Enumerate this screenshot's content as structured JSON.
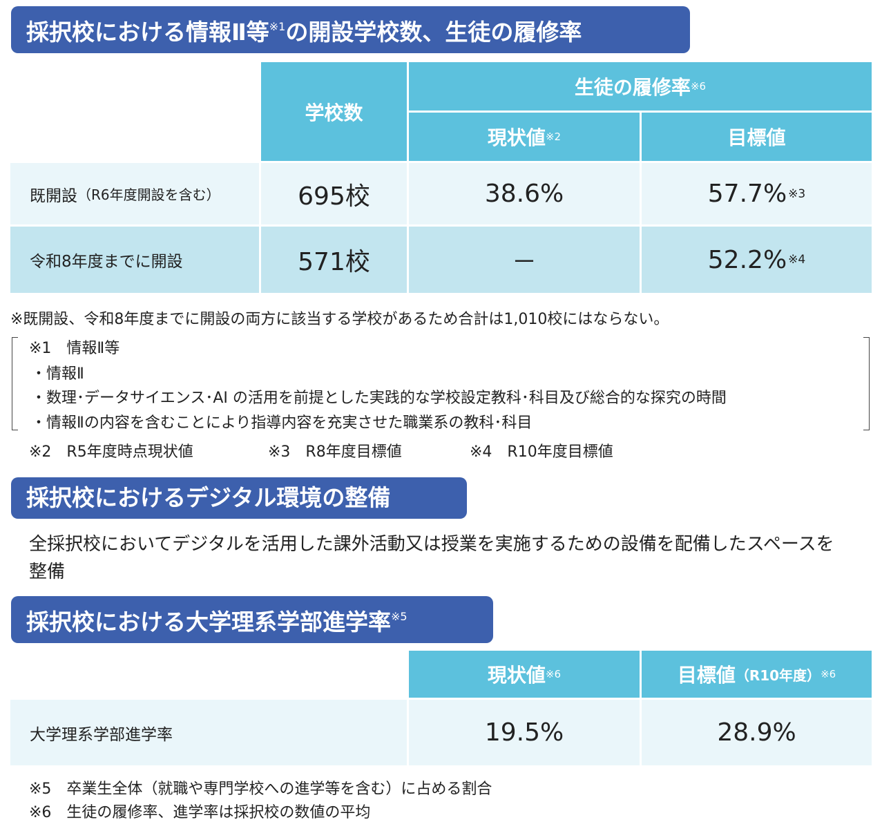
{
  "section1": {
    "title": "採択校における情報Ⅱ等",
    "title_sup": "※1",
    "title_rest": "の開設学校数、生徒の履修率",
    "table": {
      "col_school_count": "学校数",
      "col_rate_group": "生徒の履修率",
      "col_rate_group_sup": "※6",
      "col_current": "現状値",
      "col_current_sup": "※2",
      "col_target": "目標値",
      "rows": [
        {
          "label": "既開設",
          "label_note": "（R6年度開設を含む）",
          "schools": "695校",
          "current": "38.6%",
          "target": "57.7%",
          "target_sup": "※3"
        },
        {
          "label": "令和8年度までに開設",
          "label_note": "",
          "schools": "571校",
          "current": "－",
          "target": "52.2%",
          "target_sup": "※4"
        }
      ]
    },
    "note_total": "※既開設、令和8年度までに開設の両方に該当する学校があるため合計は1,010校にはならない。",
    "note1_heading": "※1　情報Ⅱ等",
    "note1_items": [
      "・情報Ⅱ",
      "・数理･データサイエンス･AI の活用を前提とした実践的な学校設定教科･科目及び総合的な探究の時間",
      "・情報Ⅱの内容を含むことにより指導内容を充実させた職業系の教科･科目"
    ],
    "note2": "※2　R5年度時点現状値",
    "note3": "※3　R8年度目標値",
    "note4": "※4　R10年度目標値"
  },
  "section2": {
    "title": "採択校におけるデジタル環境の整備",
    "body": "全採択校においてデジタルを活用した課外活動又は授業を実施するための設備を配備したスペースを整備"
  },
  "section3": {
    "title": "採択校における大学理系学部進学率",
    "title_sup": "※5",
    "table": {
      "col_current": "現状値",
      "col_current_sup": "※6",
      "col_target": "目標値",
      "col_target_note": "（R10年度）",
      "col_target_sup": "※6",
      "row_label": "大学理系学部進学率",
      "current": "19.5%",
      "target": "28.9%"
    },
    "note5": "※5　卒業生全体（就職や専門学校への進学等を含む）に占める割合",
    "note6": "※6　生徒の履修率、進学率は採択校の数値の平均"
  },
  "colors": {
    "banner": "#3d60ad",
    "header": "#5cc1dd",
    "row_light": "#eaf6fa",
    "row_dark": "#c2e5ef"
  }
}
